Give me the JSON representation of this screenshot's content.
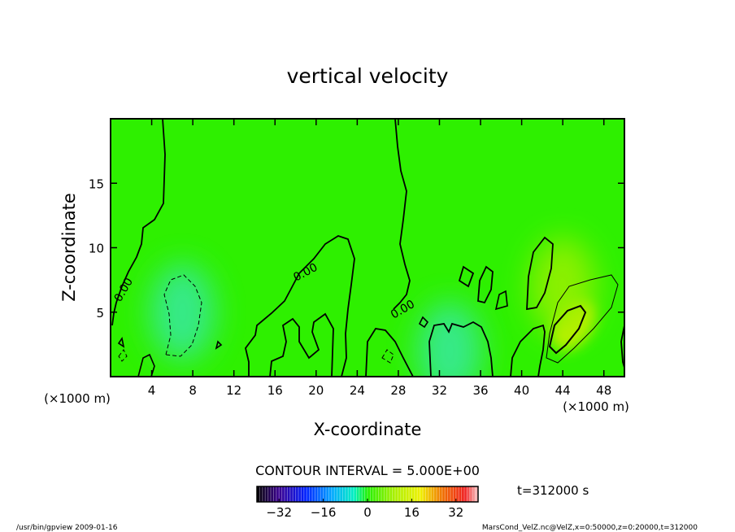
{
  "chart_data": {
    "type": "heatmap",
    "title": "vertical velocity",
    "xlabel": "X-coordinate",
    "ylabel": "Z-coordinate",
    "x_unit": "(×1000 m)",
    "y_unit": "(×1000 m)",
    "xlim": [
      0,
      50
    ],
    "ylim": [
      0,
      20
    ],
    "x_ticks": [
      "4",
      "8",
      "12",
      "16",
      "20",
      "24",
      "28",
      "32",
      "36",
      "40",
      "44",
      "48"
    ],
    "y_ticks": [
      "5",
      "10",
      "15"
    ],
    "x_tick_values": [
      4,
      8,
      12,
      16,
      20,
      24,
      28,
      32,
      36,
      40,
      44,
      48
    ],
    "y_tick_values": [
      5,
      10,
      15
    ],
    "contour_interval_text": "CONTOUR INTERVAL = 5.000E+00",
    "contour_label": "0.00",
    "time_label": "t=312000 s",
    "colorbar": {
      "range": [
        -40,
        40
      ],
      "tick_labels": [
        "-32",
        "-16",
        "0",
        "16",
        "32"
      ],
      "tick_values": [
        -32,
        -16,
        0,
        16,
        32
      ]
    },
    "colors": {
      "background_field": "#2ef000",
      "updraft_peak": "#d8f000",
      "downdraft_min": "#38e8a0"
    },
    "features": [
      {
        "type": "downdraft",
        "x": 7,
        "z": 5,
        "value": -8
      },
      {
        "type": "downdraft",
        "x": 33,
        "z": 2,
        "value": -6
      },
      {
        "type": "updraft",
        "x": 45,
        "z": 4,
        "value": 15
      },
      {
        "type": "updraft",
        "x": 44,
        "z": 7,
        "value": 6
      }
    ]
  },
  "footer": {
    "left": "/usr/bin/gpview   2009-01-16",
    "right": "MarsCond_VelZ.nc@VelZ,x=0:50000,z=0:20000,t=312000"
  }
}
